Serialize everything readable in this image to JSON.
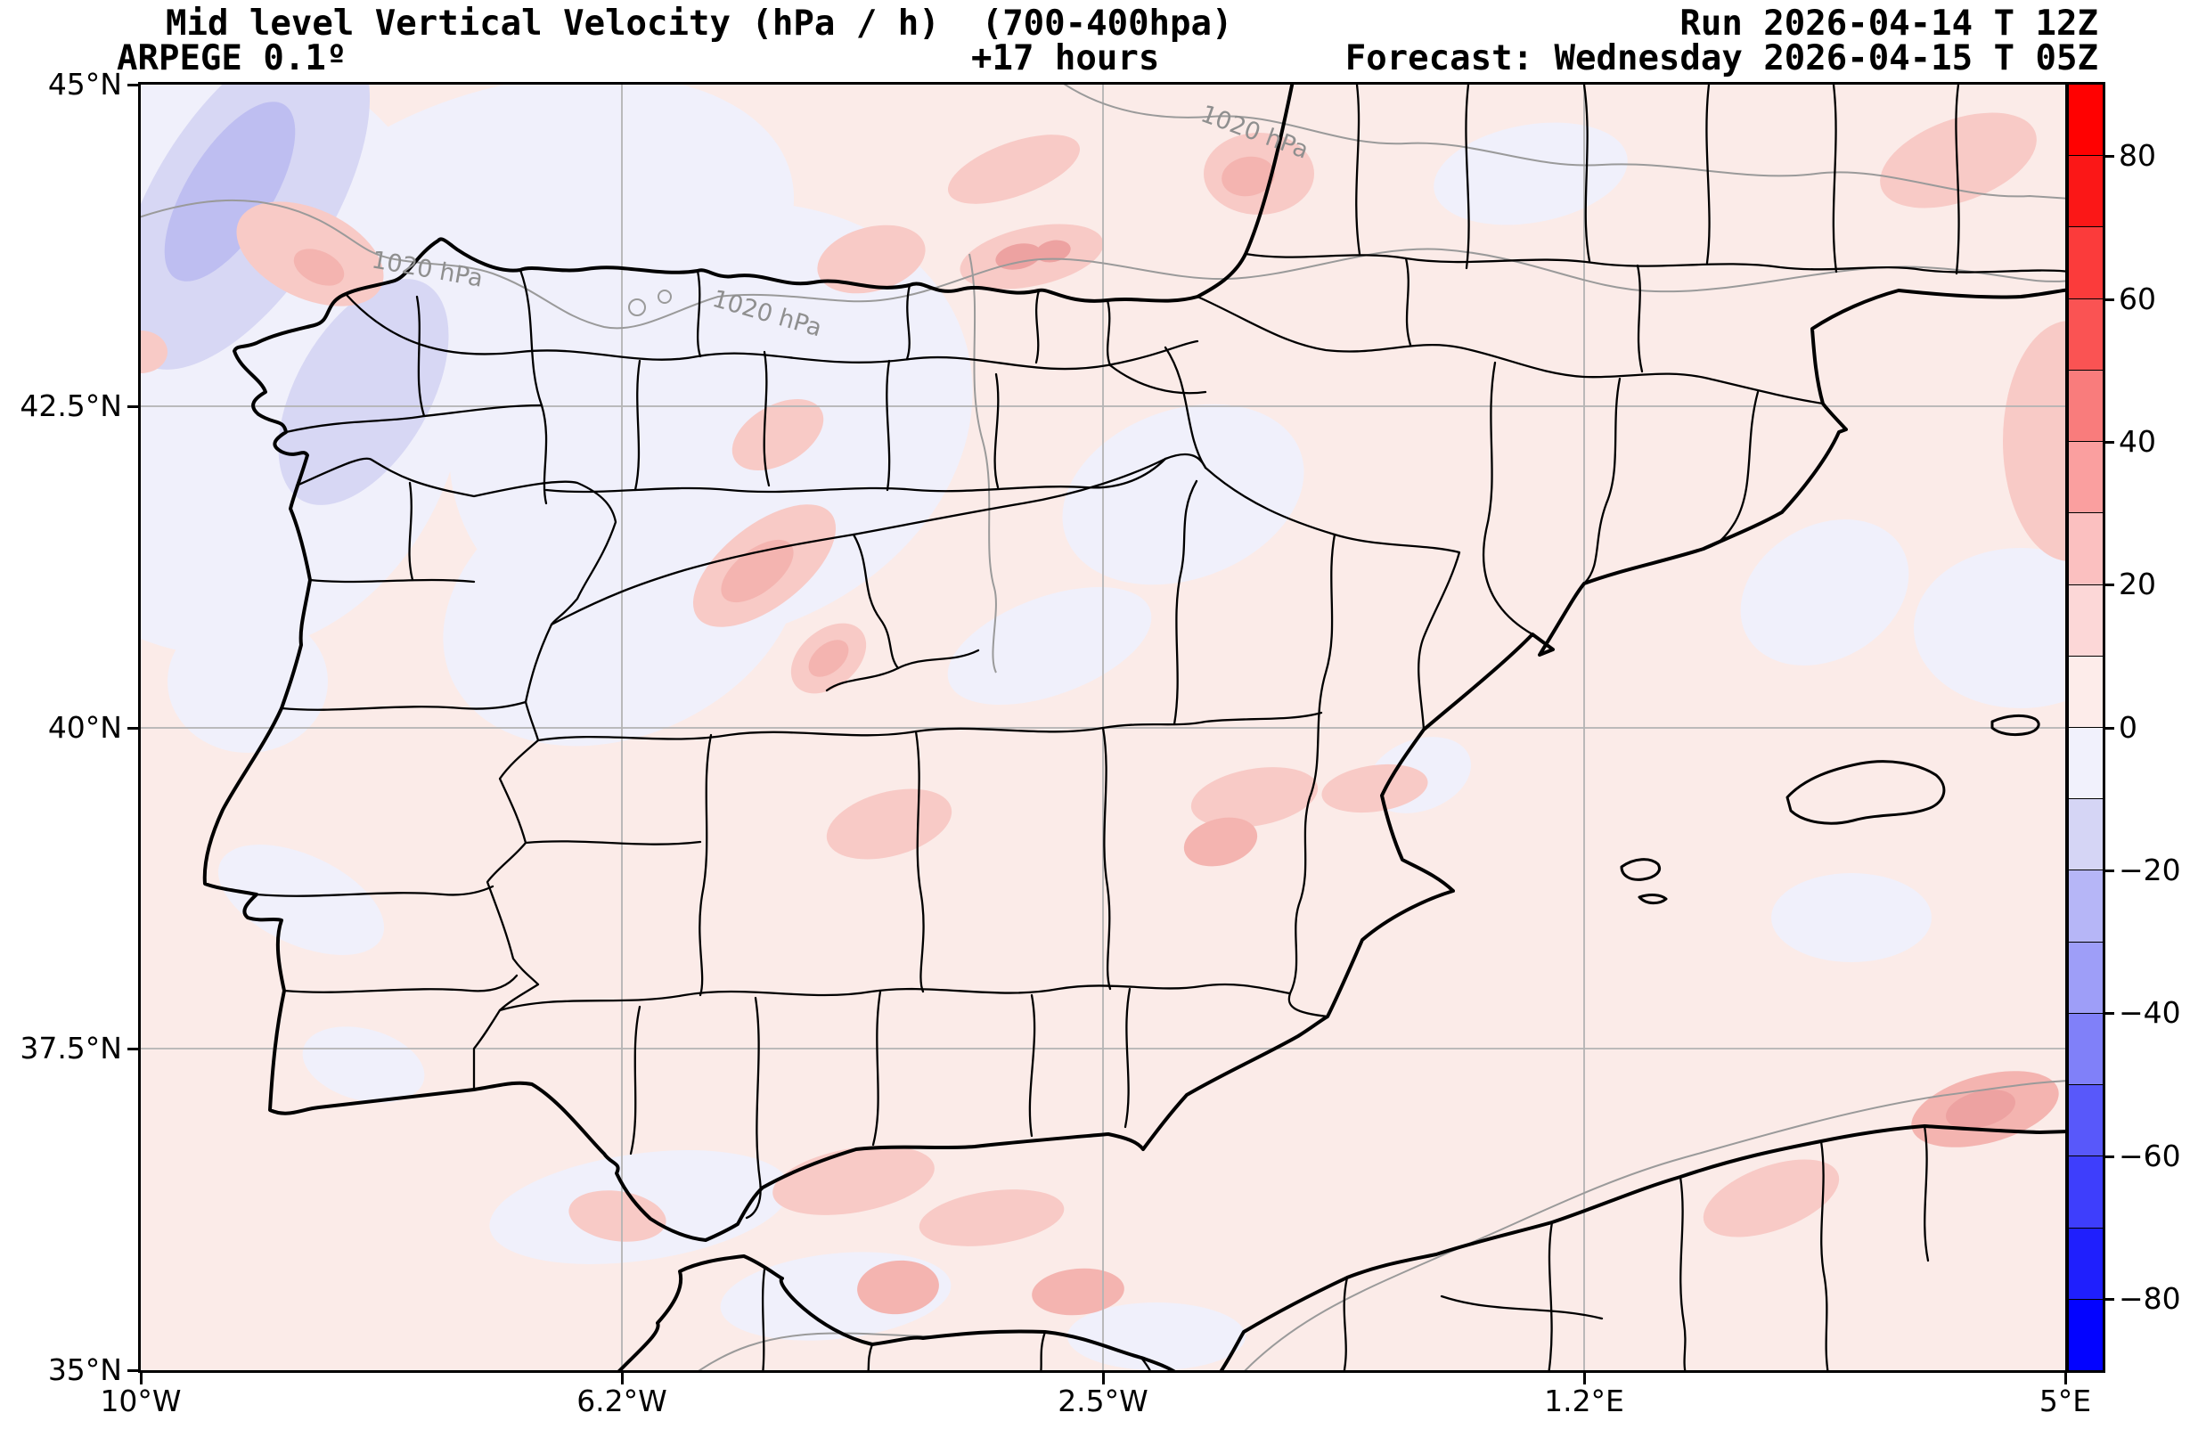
{
  "header": {
    "title": "Mid level Vertical Velocity (hPa / h)  (700-400hpa)",
    "model": "ARPEGE 0.1º",
    "lead_time": "+17 hours",
    "run": "Run 2026-04-14 T 12Z",
    "forecast": "Forecast: Wednesday 2026-04-15 T 05Z"
  },
  "chart_data": {
    "type": "heatmap",
    "title": "Mid level Vertical Velocity (hPa / h)  (700-400hpa)",
    "model": "ARPEGE 0.1º",
    "lead_time_hours": 17,
    "run": "2026-04-14 T 12Z",
    "valid": "Wednesday 2026-04-15 T 05Z",
    "variable": "Mid level Vertical Velocity",
    "units": "hPa / h",
    "layer": "700-400hpa",
    "region": "Iberian Peninsula (10W-5E, 35N-45N)",
    "grid": "on",
    "x_axis": {
      "tick_labels": [
        "10°W",
        "6.2°W",
        "2.5°W",
        "1.2°E",
        "5°E"
      ],
      "range_deg_lon": [
        -10,
        5
      ]
    },
    "y_axis": {
      "tick_labels": [
        "45°N",
        "42.5°N",
        "40°N",
        "37.5°N",
        "35°N"
      ],
      "range_deg_lat": [
        35,
        45
      ]
    },
    "colorbar": {
      "position": "right",
      "tick_labels": [
        "80",
        "60",
        "40",
        "20",
        "0",
        "−20",
        "−40",
        "−60",
        "−80"
      ],
      "tick_values": [
        80,
        60,
        40,
        20,
        0,
        -20,
        -40,
        -60,
        -80
      ],
      "value_range": [
        -90,
        90
      ],
      "segment_colors_top_to_bottom": [
        "#ff0101",
        "#fb1717",
        "#fb3b3b",
        "#fa5353",
        "#f97c7c",
        "#fa9f9f",
        "#fbc0c0",
        "#fcd7d7",
        "#fdecea",
        "#f1f1fc",
        "#d5d5f5",
        "#b6b6f7",
        "#9e9ef8",
        "#8080f9",
        "#5858fa",
        "#3e3efc",
        "#1f1ffd",
        "#0303ff"
      ]
    },
    "isobar_labels": [
      "1020 hPa",
      "1020 hPa",
      "1020 hPa"
    ],
    "field_colors": {
      "weak_rising_0_to_10": "#fbebe8",
      "weak_sinking_0_to_-10": "#f0f0fb",
      "sinking_-10_to_-20": "#d7d7f4",
      "sinking_-20_to_-30": "#bebef1",
      "rising_10_to_20": "#f8cac6",
      "rising_20_to_30": "#f4b4b0",
      "rising_cores": "#eda2a1"
    },
    "approx_value_range_on_map": [
      -25,
      30
    ]
  }
}
